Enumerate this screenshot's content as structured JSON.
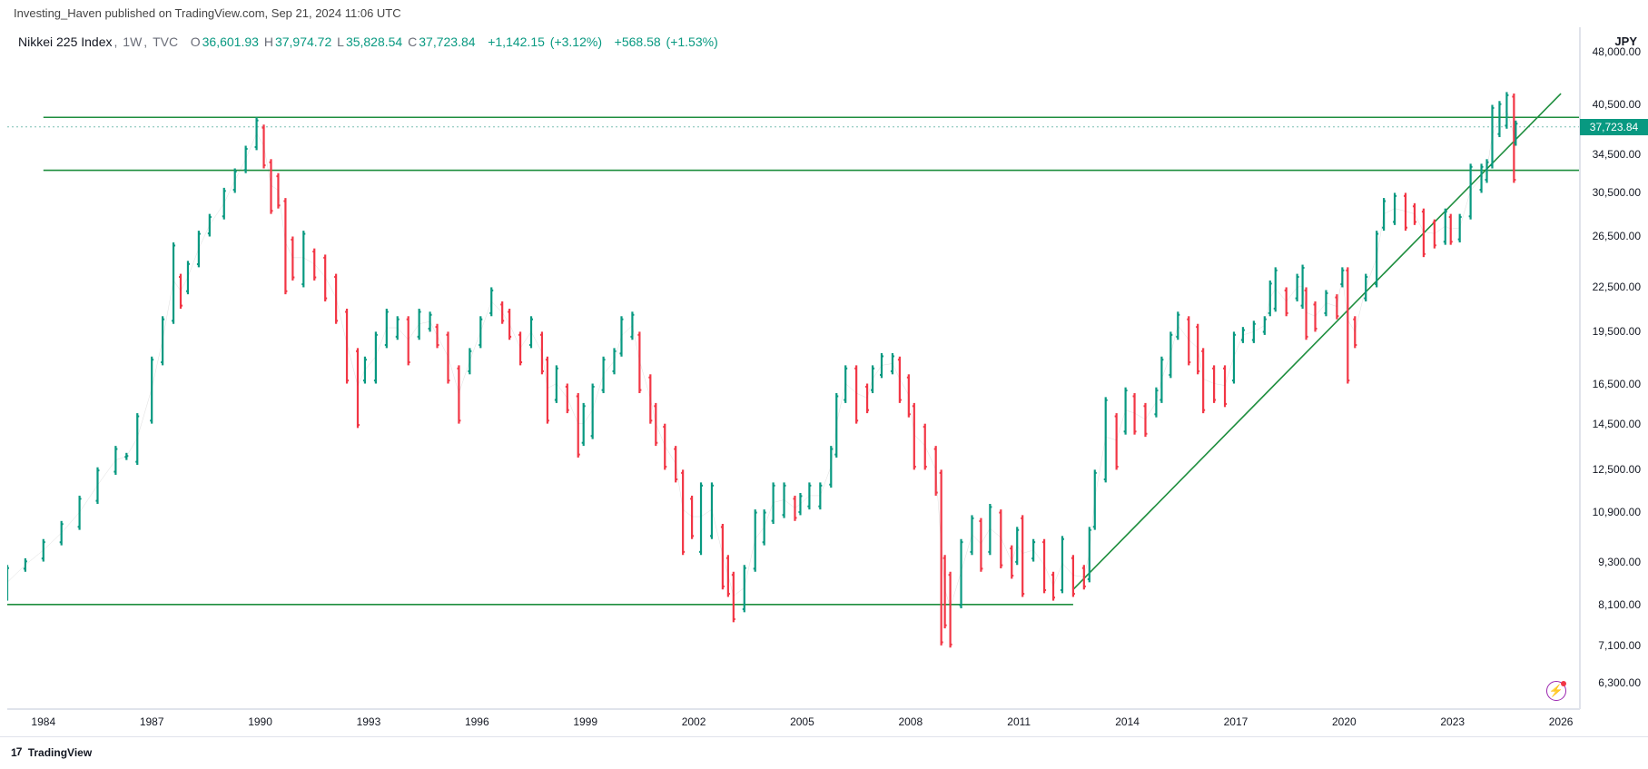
{
  "header": {
    "text": "Investing_Haven published on TradingView.com, Sep 21, 2024 11:06 UTC"
  },
  "ohlc": {
    "symbol": "Nikkei 225 Index",
    "interval": "1W",
    "exchange": "TVC",
    "O": "36,601.93",
    "H": "37,974.72",
    "L": "35,828.54",
    "C": "37,723.84",
    "chg_abs": "+1,142.15",
    "chg_pct": "(+3.12%)",
    "chg2_abs": "+568.58",
    "chg2_pct": "(+1.53%)"
  },
  "yaxis": {
    "title": "JPY",
    "ticks": [
      48000,
      40500,
      37723.84,
      34500,
      30500,
      26500,
      22500,
      19500,
      16500,
      14500,
      12500,
      10900,
      9300,
      8100,
      7100,
      6300
    ],
    "labels": [
      "48,000.00",
      "40,500.00",
      "37,723.84",
      "34,500.00",
      "30,500.00",
      "26,500.00",
      "22,500.00",
      "19,500.00",
      "16,500.00",
      "14,500.00",
      "12,500.00",
      "10,900.00",
      "9,300.00",
      "8,100.00",
      "7,100.00",
      "6,300.00"
    ],
    "last": 37723.84,
    "last_label": "37,723.84",
    "scale": "log",
    "min": 5800,
    "max": 52000
  },
  "xaxis": {
    "ticks": [
      1984,
      1987,
      1990,
      1993,
      1996,
      1999,
      2002,
      2005,
      2008,
      2011,
      2014,
      2017,
      2020,
      2023,
      2026
    ],
    "min": 1983.0,
    "max": 2026.5
  },
  "lines": {
    "h1": 38900,
    "h2": 32800,
    "h3": 8100,
    "h3_x0": 1983.0,
    "h3_x1": 2012.5,
    "trend": {
      "x0": 2012.5,
      "y0": 8500,
      "x1": 2026.0,
      "y1": 42000
    },
    "dotted_y": 37723.84
  },
  "colors": {
    "up": "#089981",
    "down": "#f23645",
    "hlines": "#1e8e3e",
    "trend": "#1e8e3e",
    "dotted": "#7bbfb4",
    "axis": "#e0e3eb",
    "bg": "#ffffff"
  },
  "footer": {
    "text": "TradingView"
  },
  "series": [
    [
      1983.0,
      8200,
      9200
    ],
    [
      1983.5,
      9000,
      9400
    ],
    [
      1984.0,
      9300,
      10000
    ],
    [
      1984.5,
      9800,
      10600
    ],
    [
      1985.0,
      10300,
      11500
    ],
    [
      1985.5,
      11200,
      12600
    ],
    [
      1986.0,
      12300,
      13500
    ],
    [
      1986.3,
      12900,
      13200
    ],
    [
      1986.6,
      12700,
      15000
    ],
    [
      1987.0,
      14500,
      18000
    ],
    [
      1987.3,
      17500,
      20500
    ],
    [
      1987.6,
      20000,
      26000
    ],
    [
      1987.8,
      21000,
      23500
    ],
    [
      1988.0,
      22000,
      24500
    ],
    [
      1988.3,
      24000,
      27000
    ],
    [
      1988.6,
      26500,
      28500
    ],
    [
      1989.0,
      28000,
      31000
    ],
    [
      1989.3,
      30500,
      33000
    ],
    [
      1989.6,
      32500,
      35500
    ],
    [
      1989.9,
      35000,
      38900
    ],
    [
      1990.1,
      33000,
      38000
    ],
    [
      1990.3,
      28500,
      34000
    ],
    [
      1990.5,
      29000,
      32500
    ],
    [
      1990.7,
      22000,
      30000
    ],
    [
      1990.9,
      23000,
      26500
    ],
    [
      1991.2,
      22500,
      27000
    ],
    [
      1991.5,
      23000,
      25500
    ],
    [
      1991.8,
      21500,
      25000
    ],
    [
      1992.1,
      20000,
      23500
    ],
    [
      1992.4,
      16500,
      21000
    ],
    [
      1992.7,
      14300,
      18500
    ],
    [
      1992.9,
      16500,
      18000
    ],
    [
      1993.2,
      16500,
      19500
    ],
    [
      1993.5,
      18500,
      21000
    ],
    [
      1993.8,
      19000,
      20500
    ],
    [
      1994.1,
      17500,
      20500
    ],
    [
      1994.4,
      19000,
      21000
    ],
    [
      1994.7,
      19500,
      20800
    ],
    [
      1994.9,
      18500,
      20000
    ],
    [
      1995.2,
      16500,
      19500
    ],
    [
      1995.5,
      14500,
      17500
    ],
    [
      1995.8,
      17000,
      18500
    ],
    [
      1996.1,
      18500,
      20500
    ],
    [
      1996.4,
      20500,
      22500
    ],
    [
      1996.7,
      20000,
      21500
    ],
    [
      1996.9,
      19000,
      21000
    ],
    [
      1997.2,
      17500,
      19500
    ],
    [
      1997.5,
      18500,
      20500
    ],
    [
      1997.8,
      17000,
      19500
    ],
    [
      1997.95,
      14500,
      18000
    ],
    [
      1998.2,
      15500,
      17500
    ],
    [
      1998.5,
      15000,
      16500
    ],
    [
      1998.8,
      13000,
      16000
    ],
    [
      1998.95,
      13500,
      15500
    ],
    [
      1999.2,
      13800,
      16500
    ],
    [
      1999.5,
      16000,
      18000
    ],
    [
      1999.8,
      17000,
      18500
    ],
    [
      2000.0,
      18000,
      20500
    ],
    [
      2000.3,
      19000,
      20800
    ],
    [
      2000.5,
      16000,
      19500
    ],
    [
      2000.8,
      14500,
      17000
    ],
    [
      2000.95,
      13500,
      15500
    ],
    [
      2001.2,
      12500,
      14500
    ],
    [
      2001.5,
      12000,
      13500
    ],
    [
      2001.7,
      9500,
      12500
    ],
    [
      2001.95,
      10000,
      11500
    ],
    [
      2002.2,
      9500,
      12000
    ],
    [
      2002.5,
      10000,
      12000
    ],
    [
      2002.8,
      8500,
      10500
    ],
    [
      2002.95,
      8300,
      9500
    ],
    [
      2003.1,
      7650,
      9000
    ],
    [
      2003.4,
      7900,
      9200
    ],
    [
      2003.7,
      9000,
      11000
    ],
    [
      2003.95,
      9800,
      11000
    ],
    [
      2004.2,
      10500,
      12000
    ],
    [
      2004.5,
      10700,
      12000
    ],
    [
      2004.8,
      10600,
      11500
    ],
    [
      2004.95,
      10800,
      11600
    ],
    [
      2005.2,
      11000,
      12000
    ],
    [
      2005.5,
      11000,
      12000
    ],
    [
      2005.8,
      11800,
      13500
    ],
    [
      2005.95,
      13000,
      16000
    ],
    [
      2006.2,
      15500,
      17500
    ],
    [
      2006.5,
      14500,
      17500
    ],
    [
      2006.8,
      15000,
      16500
    ],
    [
      2006.95,
      16000,
      17500
    ],
    [
      2007.2,
      16800,
      18200
    ],
    [
      2007.5,
      17000,
      18200
    ],
    [
      2007.7,
      15500,
      18000
    ],
    [
      2007.95,
      14800,
      17000
    ],
    [
      2008.1,
      12500,
      15500
    ],
    [
      2008.4,
      12500,
      14500
    ],
    [
      2008.7,
      11500,
      13500
    ],
    [
      2008.85,
      7100,
      12500
    ],
    [
      2008.95,
      7500,
      9500
    ],
    [
      2009.1,
      7050,
      9000
    ],
    [
      2009.4,
      8000,
      10000
    ],
    [
      2009.7,
      9500,
      10800
    ],
    [
      2009.95,
      9000,
      10700
    ],
    [
      2010.2,
      9500,
      11200
    ],
    [
      2010.5,
      9100,
      11000
    ],
    [
      2010.8,
      8800,
      9800
    ],
    [
      2010.95,
      9200,
      10400
    ],
    [
      2011.1,
      8300,
      10800
    ],
    [
      2011.4,
      9300,
      10000
    ],
    [
      2011.7,
      8400,
      10000
    ],
    [
      2011.95,
      8200,
      9000
    ],
    [
      2012.2,
      8400,
      10100
    ],
    [
      2012.5,
      8300,
      9500
    ],
    [
      2012.8,
      8500,
      9200
    ],
    [
      2012.95,
      8700,
      10400
    ],
    [
      2013.1,
      10300,
      12500
    ],
    [
      2013.4,
      12000,
      15800
    ],
    [
      2013.7,
      12500,
      15000
    ],
    [
      2013.95,
      14000,
      16300
    ],
    [
      2014.2,
      14000,
      16000
    ],
    [
      2014.5,
      13900,
      15500
    ],
    [
      2014.8,
      14800,
      16300
    ],
    [
      2014.95,
      15500,
      18000
    ],
    [
      2015.2,
      16800,
      19500
    ],
    [
      2015.4,
      19000,
      20800
    ],
    [
      2015.7,
      17500,
      20500
    ],
    [
      2015.95,
      17000,
      20000
    ],
    [
      2016.1,
      15000,
      18500
    ],
    [
      2016.4,
      15500,
      17500
    ],
    [
      2016.7,
      15300,
      17500
    ],
    [
      2016.95,
      16500,
      19500
    ],
    [
      2017.2,
      18800,
      19800
    ],
    [
      2017.5,
      18800,
      20200
    ],
    [
      2017.8,
      19300,
      20500
    ],
    [
      2017.95,
      20500,
      23000
    ],
    [
      2018.1,
      20800,
      24000
    ],
    [
      2018.4,
      20500,
      22500
    ],
    [
      2018.7,
      21500,
      23500
    ],
    [
      2018.85,
      21000,
      24200
    ],
    [
      2018.95,
      19000,
      22500
    ],
    [
      2019.2,
      19500,
      21500
    ],
    [
      2019.5,
      20500,
      22300
    ],
    [
      2019.8,
      20300,
      22000
    ],
    [
      2019.95,
      22500,
      24000
    ],
    [
      2020.1,
      16500,
      24000
    ],
    [
      2020.3,
      18500,
      20500
    ],
    [
      2020.6,
      21500,
      23500
    ],
    [
      2020.9,
      22500,
      27000
    ],
    [
      2021.1,
      27000,
      30000
    ],
    [
      2021.4,
      27500,
      30500
    ],
    [
      2021.7,
      27000,
      30500
    ],
    [
      2021.95,
      27500,
      29500
    ],
    [
      2022.2,
      24800,
      29000
    ],
    [
      2022.5,
      25500,
      28000
    ],
    [
      2022.8,
      25800,
      29000
    ],
    [
      2022.95,
      25800,
      28500
    ],
    [
      2023.2,
      26000,
      28500
    ],
    [
      2023.5,
      28000,
      33500
    ],
    [
      2023.8,
      30500,
      33500
    ],
    [
      2023.95,
      31500,
      34000
    ],
    [
      2024.1,
      33000,
      40500
    ],
    [
      2024.3,
      36500,
      41000
    ],
    [
      2024.5,
      37500,
      42200
    ],
    [
      2024.7,
      31500,
      42000
    ],
    [
      2024.75,
      35500,
      38500
    ]
  ]
}
